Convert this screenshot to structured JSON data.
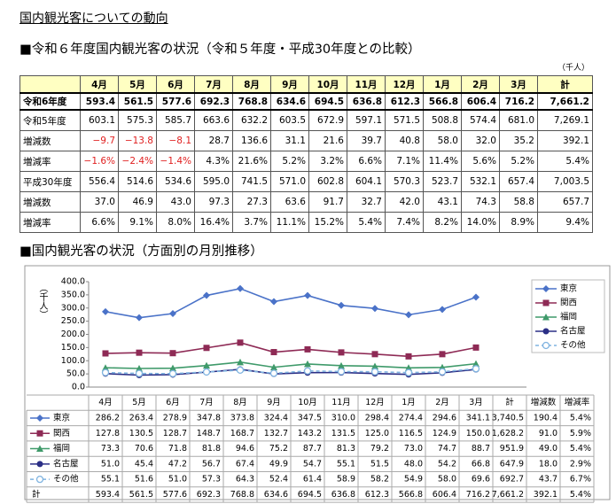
{
  "title": "国内観光客についての動向",
  "comparison": {
    "heading": "■令和６年度国内観光客の状況（令和５年度・平成30年度との比較）",
    "unit": "（千人）",
    "columns": [
      "4月",
      "5月",
      "6月",
      "7月",
      "8月",
      "9月",
      "10月",
      "11月",
      "12月",
      "1月",
      "2月",
      "3月",
      "計"
    ],
    "rows": [
      {
        "label": "令和6年度",
        "cells": [
          "593.4",
          "561.5",
          "577.6",
          "692.3",
          "768.8",
          "634.6",
          "694.5",
          "636.8",
          "612.3",
          "566.8",
          "606.4",
          "716.2",
          "7,661.2"
        ]
      },
      {
        "label": "令和5年度",
        "cells": [
          "603.1",
          "575.3",
          "585.7",
          "663.6",
          "632.2",
          "603.5",
          "672.9",
          "597.1",
          "571.5",
          "508.8",
          "574.4",
          "681.0",
          "7,269.1"
        ]
      },
      {
        "label": "増減数",
        "cells": [
          "−9.7",
          "−13.8",
          "−8.1",
          "28.7",
          "136.6",
          "31.1",
          "21.6",
          "39.7",
          "40.8",
          "58.0",
          "32.0",
          "35.2",
          "392.1"
        ]
      },
      {
        "label": "増減率",
        "cells": [
          "−1.6%",
          "−2.4%",
          "−1.4%",
          "4.3%",
          "21.6%",
          "5.2%",
          "3.2%",
          "6.6%",
          "7.1%",
          "11.4%",
          "5.6%",
          "5.2%",
          "5.4%"
        ]
      },
      {
        "label": "平成30年度",
        "cells": [
          "556.4",
          "514.6",
          "534.6",
          "595.0",
          "741.5",
          "571.0",
          "602.8",
          "604.1",
          "570.3",
          "523.7",
          "532.1",
          "657.4",
          "7,003.5"
        ]
      },
      {
        "label": "増減数",
        "cells": [
          "37.0",
          "46.9",
          "43.0",
          "97.3",
          "27.3",
          "63.6",
          "91.7",
          "32.7",
          "42.0",
          "43.1",
          "74.3",
          "58.8",
          "657.7"
        ]
      },
      {
        "label": "増減率",
        "cells": [
          "6.6%",
          "9.1%",
          "8.0%",
          "16.4%",
          "3.7%",
          "11.1%",
          "15.2%",
          "5.4%",
          "7.4%",
          "8.2%",
          "14.0%",
          "8.9%",
          "9.4%"
        ]
      }
    ]
  },
  "chart_data": {
    "type": "line",
    "title": "■国内観光客の状況（方面別の月別推移）",
    "y_label": "（千人）",
    "categories": [
      "4月",
      "5月",
      "6月",
      "7月",
      "8月",
      "9月",
      "10月",
      "11月",
      "12月",
      "1月",
      "2月",
      "3月"
    ],
    "ylim": [
      0,
      400
    ],
    "yticks": [
      {
        "value": 0,
        "label": "0.0"
      },
      {
        "value": 50,
        "label": "50.0"
      },
      {
        "value": 100,
        "label": "100.0"
      },
      {
        "value": 150,
        "label": "150.0"
      },
      {
        "value": 200,
        "label": "200.0"
      },
      {
        "value": 250,
        "label": "250.0"
      },
      {
        "value": 300,
        "label": "300.0"
      },
      {
        "value": 350,
        "label": "350.0"
      },
      {
        "value": 400,
        "label": "400.0"
      }
    ],
    "table_columns": [
      "計",
      "増減数",
      "増減率"
    ],
    "series": [
      {
        "name": "東京",
        "color": "#4a72c8",
        "marker": "diamond",
        "values": [
          286.2,
          263.4,
          278.9,
          347.8,
          373.8,
          324.4,
          347.5,
          310.0,
          298.4,
          274.4,
          294.6,
          341.1
        ],
        "value_labels": [
          "286.2",
          "263.4",
          "278.9",
          "347.8",
          "373.8",
          "324.4",
          "347.5",
          "310.0",
          "298.4",
          "274.4",
          "294.6",
          "341.1"
        ],
        "summary": [
          "3,740.5",
          "190.4",
          "5.4%"
        ]
      },
      {
        "name": "関西",
        "color": "#8e2a55",
        "marker": "square",
        "values": [
          127.8,
          130.5,
          128.7,
          148.7,
          168.7,
          132.7,
          143.2,
          131.5,
          125.0,
          116.5,
          124.9,
          150.0
        ],
        "value_labels": [
          "127.8",
          "130.5",
          "128.7",
          "148.7",
          "168.7",
          "132.7",
          "143.2",
          "131.5",
          "125.0",
          "116.5",
          "124.9",
          "150.0"
        ],
        "summary": [
          "1,628.2",
          "91.0",
          "5.9%"
        ]
      },
      {
        "name": "福岡",
        "color": "#3f9a6a",
        "marker": "triangle",
        "values": [
          73.3,
          70.6,
          71.8,
          81.8,
          94.6,
          75.2,
          87.7,
          81.3,
          79.2,
          73.0,
          74.7,
          88.7
        ],
        "value_labels": [
          "73.3",
          "70.6",
          "71.8",
          "81.8",
          "94.6",
          "75.2",
          "87.7",
          "81.3",
          "79.2",
          "73.0",
          "74.7",
          "88.7"
        ],
        "summary": [
          "951.9",
          "49.0",
          "5.4%"
        ]
      },
      {
        "name": "名古屋",
        "color": "#2b2f86",
        "marker": "circle",
        "values": [
          51.0,
          45.4,
          47.2,
          56.7,
          67.4,
          49.9,
          54.7,
          55.1,
          51.5,
          48.0,
          54.2,
          66.8
        ],
        "value_labels": [
          "51.0",
          "45.4",
          "47.2",
          "56.7",
          "67.4",
          "49.9",
          "54.7",
          "55.1",
          "51.5",
          "48.0",
          "54.2",
          "66.8"
        ],
        "summary": [
          "647.9",
          "18.0",
          "2.9%"
        ]
      },
      {
        "name": "その他",
        "color": "#7fb3e0",
        "marker": "open-circle",
        "dashed": true,
        "values": [
          55.1,
          51.6,
          51.0,
          57.3,
          64.3,
          52.4,
          61.4,
          58.9,
          58.2,
          54.9,
          58.0,
          69.6
        ],
        "value_labels": [
          "55.1",
          "51.6",
          "51.0",
          "57.3",
          "64.3",
          "52.4",
          "61.4",
          "58.9",
          "58.2",
          "54.9",
          "58.0",
          "69.6"
        ],
        "summary": [
          "692.7",
          "43.7",
          "6.7%"
        ]
      }
    ],
    "total_row": {
      "label": "計",
      "cells": [
        "593.4",
        "561.5",
        "577.6",
        "692.3",
        "768.8",
        "634.6",
        "694.5",
        "636.8",
        "612.3",
        "566.8",
        "606.4",
        "716.2",
        "7,661.2",
        "392.1",
        "5.4%"
      ]
    }
  }
}
